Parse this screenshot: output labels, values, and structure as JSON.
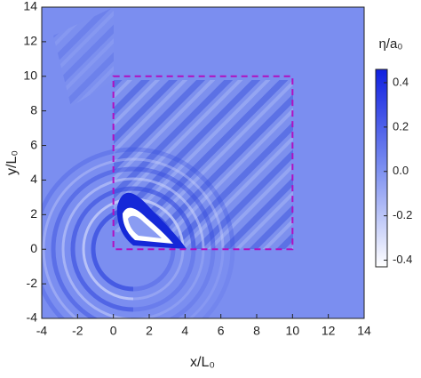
{
  "chart_data": {
    "type": "heatmap",
    "xlabel": "x/L₀",
    "ylabel": "y/L₀",
    "xlim": [
      -4,
      14
    ],
    "ylim": [
      -4,
      14
    ],
    "xticks": [
      -4,
      -2,
      0,
      2,
      4,
      6,
      8,
      10,
      12,
      14
    ],
    "yticks": [
      -4,
      -2,
      0,
      2,
      4,
      6,
      8,
      10,
      12,
      14
    ],
    "box": {
      "x0": 0,
      "y0": 0,
      "x1": 10,
      "y1": 10,
      "color": "#b010c0"
    },
    "colorbar": {
      "label": "η/a₀",
      "clim": [
        -0.43,
        0.46
      ],
      "ticks": [
        -0.4,
        -0.2,
        0.0,
        0.2,
        0.4
      ],
      "tick_labels": [
        "-0.4",
        "-0.2",
        "0.0",
        "0.2",
        "0.4"
      ],
      "colors": [
        "#ffffff",
        "#7b8ef0",
        "#1020e0"
      ]
    }
  }
}
